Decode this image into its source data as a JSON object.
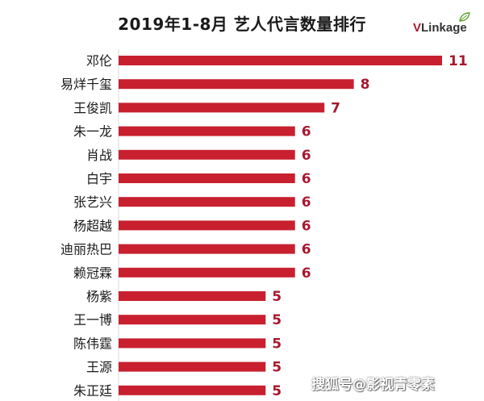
{
  "title": "2019年1-8月 艺人代言数量排行",
  "logo": {
    "brand_v": "V",
    "brand_rest": "Linkage"
  },
  "watermark": "搜狐号@影视青零素",
  "colors": {
    "bar": "#c8202f",
    "label": "#1a1a1a",
    "value": "#a6192e"
  },
  "chart_data": {
    "type": "bar",
    "orientation": "horizontal",
    "title": "2019年1-8月 艺人代言数量排行",
    "categories": [
      "邓伦",
      "易烊千玺",
      "王俊凯",
      "朱一龙",
      "肖战",
      "白宇",
      "张艺兴",
      "杨超越",
      "迪丽热巴",
      "赖冠霖",
      "杨紫",
      "王一博",
      "陈伟霆",
      "王源",
      "朱正廷"
    ],
    "values": [
      11,
      8,
      7,
      6,
      6,
      6,
      6,
      6,
      6,
      6,
      5,
      5,
      5,
      5,
      5
    ],
    "xlim": [
      0,
      11
    ],
    "grid": false,
    "legend": "none"
  }
}
